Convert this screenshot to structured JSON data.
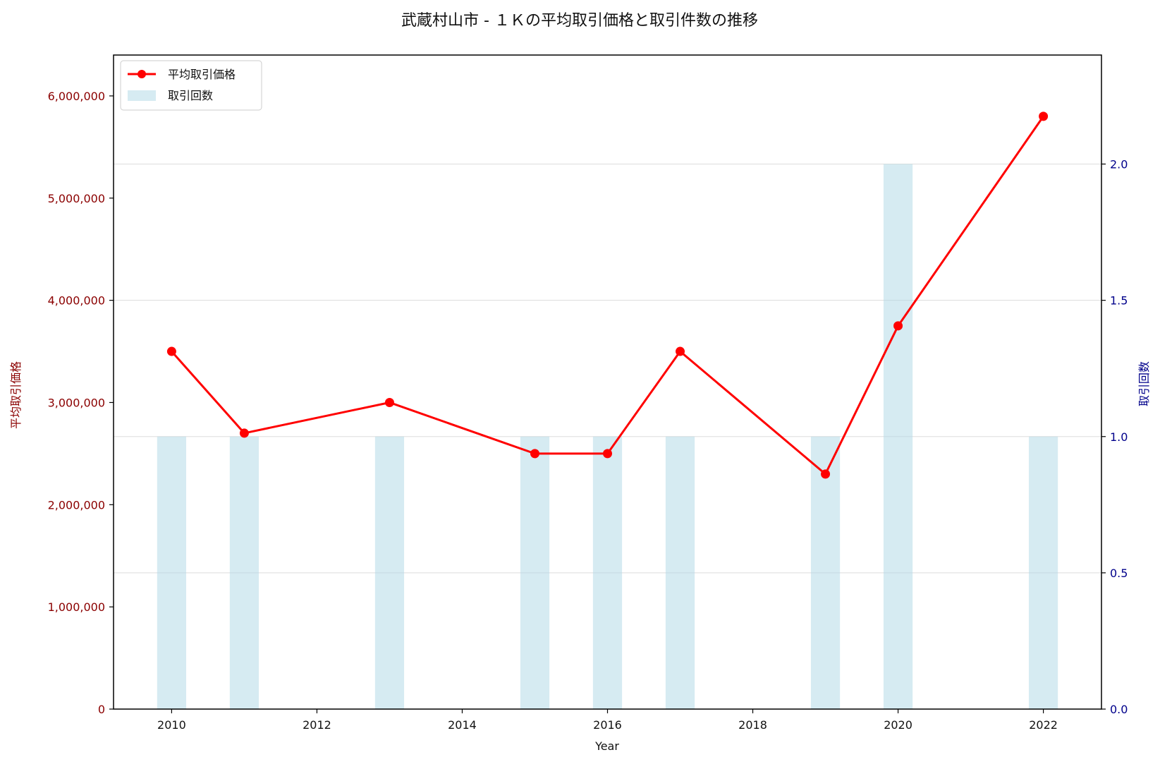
{
  "chart_data": {
    "type": "bar+line",
    "title": "武蔵村山市 - １Ｋの平均取引価格と取引件数の推移",
    "xlabel": "Year",
    "ylabel_left": "平均取引価格",
    "ylabel_right": "取引回数",
    "xlim": [
      2009.2,
      2022.8
    ],
    "ylim_left": [
      0,
      6400000
    ],
    "ylim_right": [
      0,
      2.4
    ],
    "x_ticks": [
      2010,
      2012,
      2014,
      2016,
      2018,
      2020,
      2022
    ],
    "x_tick_labels": [
      "2010",
      "2012",
      "2014",
      "2016",
      "2018",
      "2020",
      "2022"
    ],
    "y_left_ticks": [
      0,
      1000000,
      2000000,
      3000000,
      4000000,
      5000000,
      6000000
    ],
    "y_left_tick_labels": [
      "0",
      "1,000,000",
      "2,000,000",
      "3,000,000",
      "4,000,000",
      "5,000,000",
      "6,000,000"
    ],
    "y_right_ticks": [
      0.0,
      0.5,
      1.0,
      1.5,
      2.0
    ],
    "y_right_tick_labels": [
      "0.0",
      "0.5",
      "1.0",
      "1.5",
      "2.0"
    ],
    "grid": "horizontal (right axis)",
    "legend_position": "top-left",
    "series": [
      {
        "name": "平均取引価格",
        "type": "line",
        "axis": "left",
        "color": "#ff0000",
        "x": [
          2010,
          2011,
          2013,
          2015,
          2016,
          2017,
          2019,
          2020,
          2022
        ],
        "values": [
          3500000,
          2700000,
          3000000,
          2500000,
          2500000,
          3500000,
          2300000,
          3750000,
          5800000
        ]
      },
      {
        "name": "取引回数",
        "type": "bar",
        "axis": "right",
        "color": "#add8e6",
        "x": [
          2010,
          2011,
          2013,
          2015,
          2016,
          2017,
          2019,
          2020,
          2022
        ],
        "values": [
          1,
          1,
          1,
          1,
          1,
          1,
          1,
          2,
          1
        ]
      }
    ],
    "colors": {
      "left_axis": "#8b0000",
      "right_axis": "#00008b",
      "grid": "#dddddd",
      "frame": "#000000"
    }
  }
}
